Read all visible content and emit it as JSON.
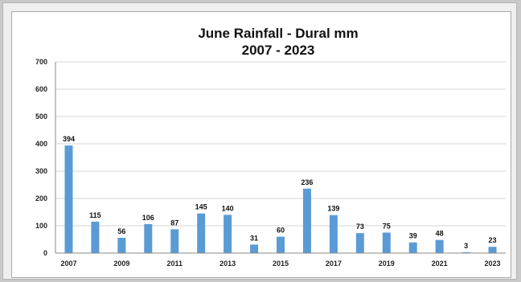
{
  "chart_data": {
    "type": "bar",
    "title": "June Rainfall - Dural mm",
    "subtitle": "2007 - 2023",
    "xlabel": "",
    "ylabel": "",
    "ylim": [
      0,
      700
    ],
    "y_ticks": [
      0,
      100,
      200,
      300,
      400,
      500,
      600,
      700
    ],
    "categories": [
      "2007",
      "2008",
      "2009",
      "2010",
      "2011",
      "2012",
      "2013",
      "2014",
      "2015",
      "2016",
      "2017",
      "2018",
      "2019",
      "2020",
      "2021",
      "2022",
      "2023"
    ],
    "x_tick_labels": [
      "2007",
      "2009",
      "2011",
      "2013",
      "2015",
      "2017",
      "2019",
      "2021",
      "2023"
    ],
    "values": [
      394,
      115,
      56,
      106,
      87,
      145,
      140,
      31,
      60,
      236,
      139,
      73,
      75,
      39,
      48,
      3,
      23
    ],
    "grid": true,
    "legend": "none",
    "bar_color": "#5b9bd5"
  }
}
